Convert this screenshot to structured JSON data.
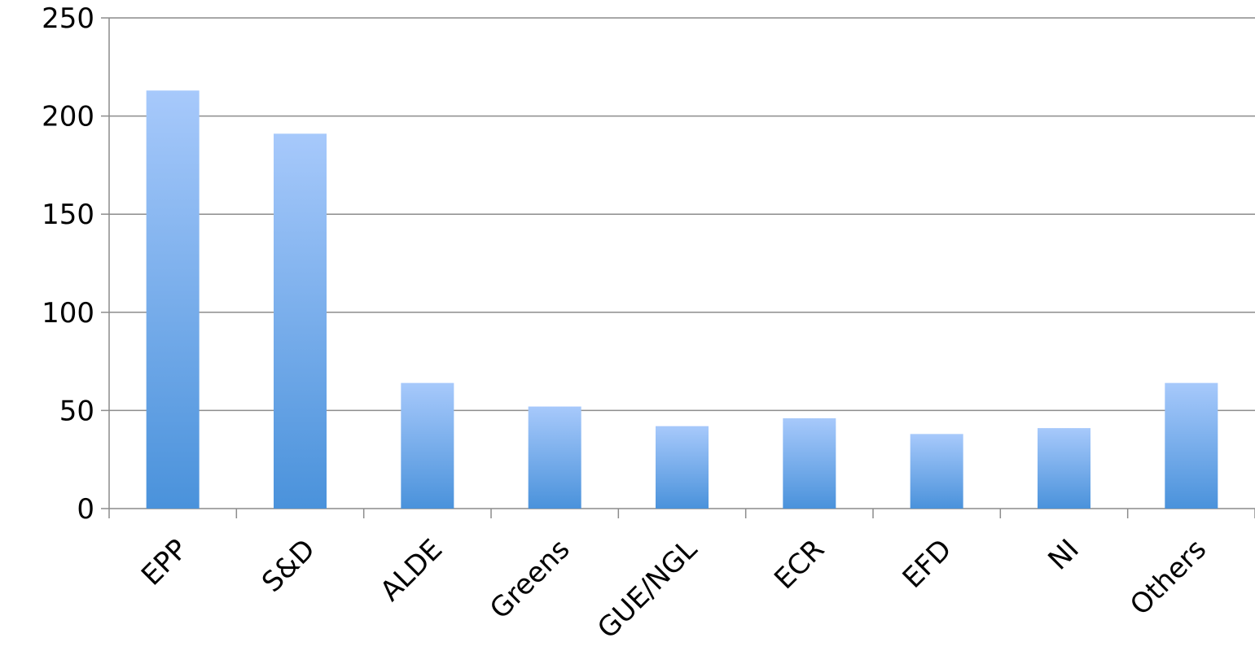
{
  "chart_data": {
    "type": "bar",
    "title": "",
    "xlabel": "",
    "ylabel": "",
    "categories": [
      "EPP",
      "S&D",
      "ALDE",
      "Greens",
      "GUE/NGL",
      "ECR",
      "EFD",
      "NI",
      "Others"
    ],
    "values": [
      213,
      191,
      64,
      52,
      42,
      46,
      38,
      41,
      64
    ],
    "ylim": [
      0,
      250
    ],
    "yticks": [
      0,
      50,
      100,
      150,
      200,
      250
    ],
    "grid": true,
    "legend": "none",
    "colors": {
      "bar_top": "#a7c9fb",
      "bar_bottom": "#4a92db",
      "grid": "#8c8c8c",
      "axis": "#8c8c8c"
    }
  }
}
